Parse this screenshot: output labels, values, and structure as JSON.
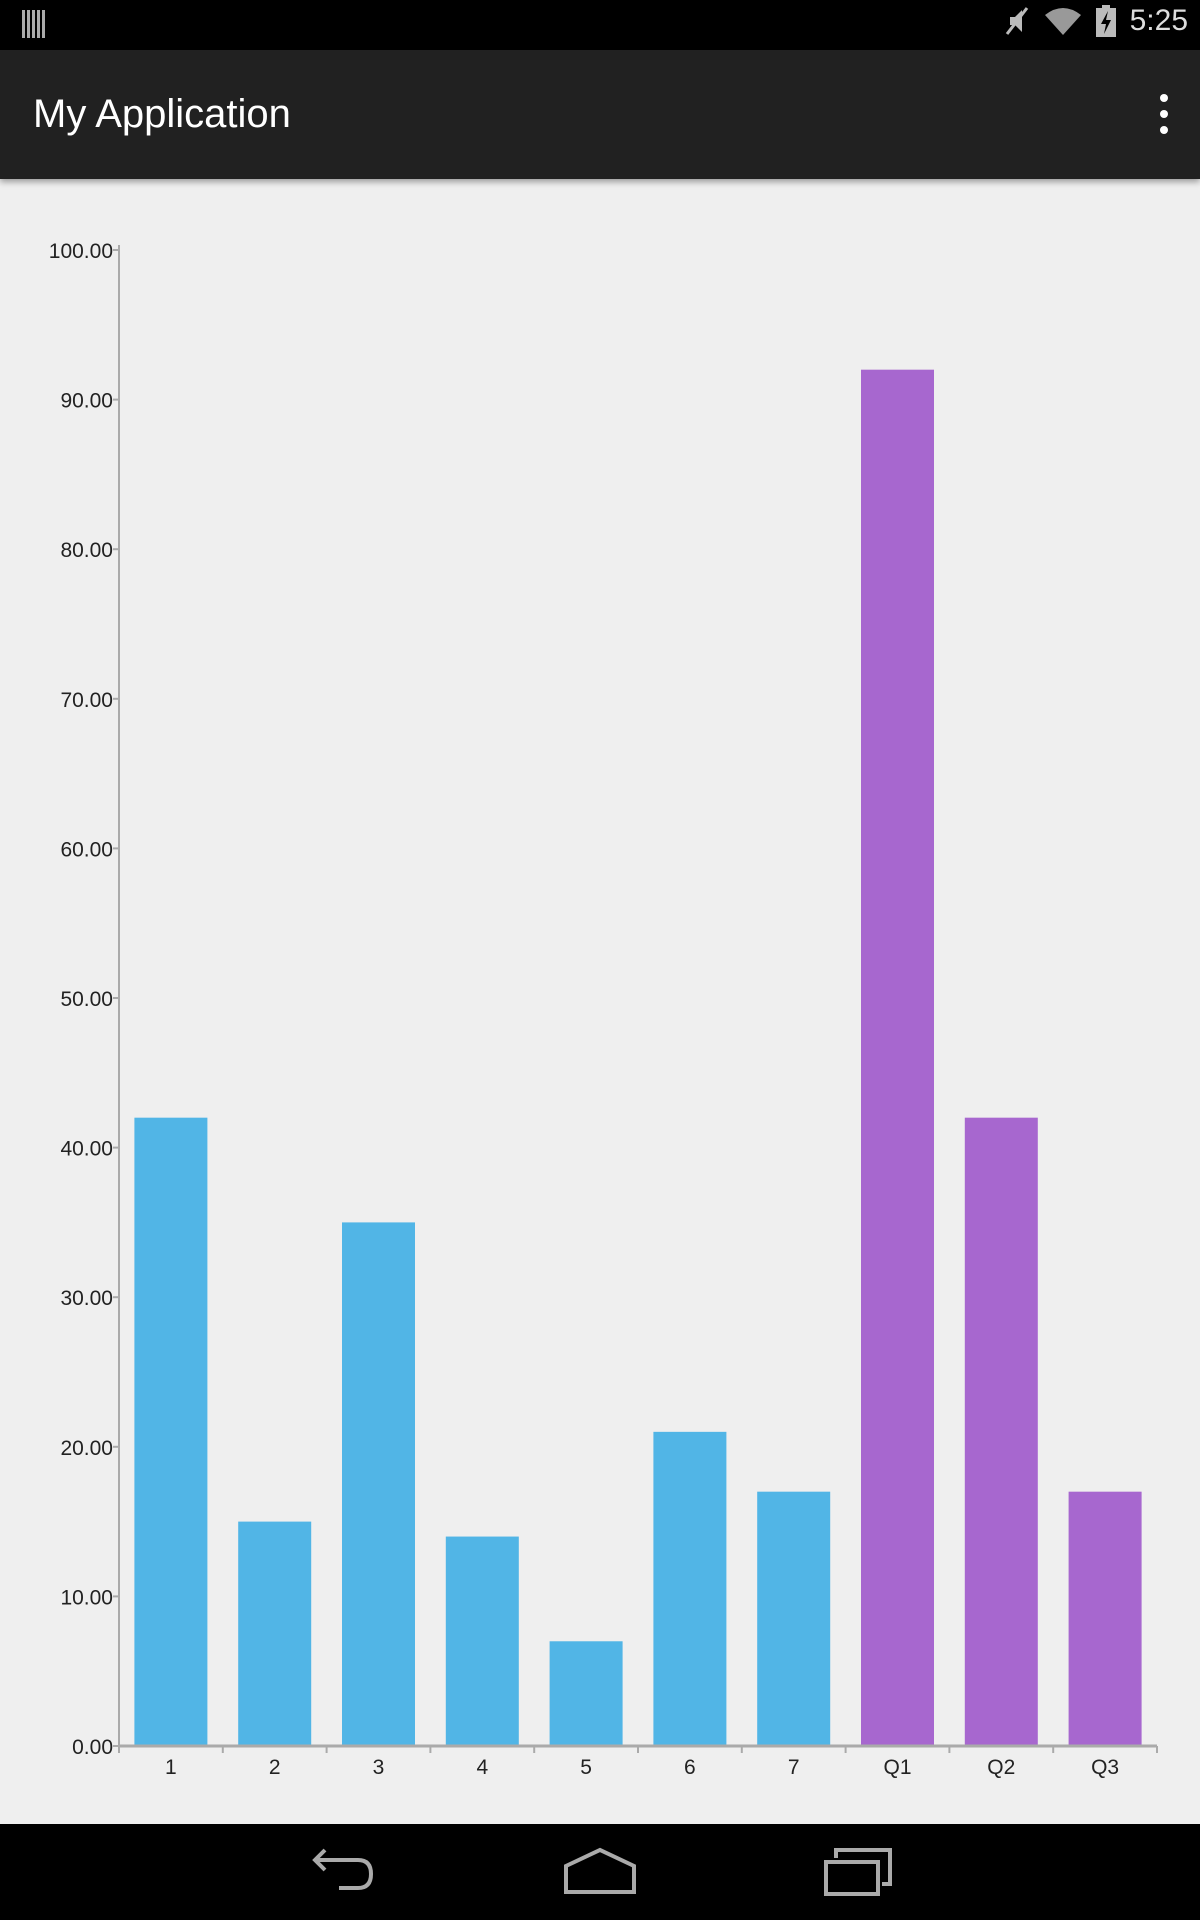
{
  "status_bar": {
    "time": "5:25",
    "icons": [
      "notification-icon",
      "mute-icon",
      "wifi-icon",
      "battery-charging-icon"
    ]
  },
  "app_bar": {
    "title": "My Application",
    "menu_icon": "overflow-menu-icon"
  },
  "nav_bar": {
    "icons": [
      "back-icon",
      "home-icon",
      "recent-apps-icon"
    ]
  },
  "colors": {
    "blue": "#51b5e6",
    "purple": "#a767cf",
    "axis": "#aaaaaa"
  },
  "chart_data": {
    "type": "bar",
    "title": "",
    "xlabel": "",
    "ylabel": "",
    "categories": [
      "1",
      "2",
      "3",
      "4",
      "5",
      "6",
      "7",
      "Q1",
      "Q2",
      "Q3"
    ],
    "values": [
      42,
      15,
      35,
      14,
      7,
      21,
      17,
      92,
      42,
      17
    ],
    "bar_colors": [
      "#51b5e6",
      "#51b5e6",
      "#51b5e6",
      "#51b5e6",
      "#51b5e6",
      "#51b5e6",
      "#51b5e6",
      "#a767cf",
      "#a767cf",
      "#a767cf"
    ],
    "ylim": [
      0,
      100
    ],
    "yticks": [
      "0.00",
      "10.00",
      "20.00",
      "30.00",
      "40.00",
      "50.00",
      "60.00",
      "70.00",
      "80.00",
      "90.00",
      "100.00"
    ],
    "grid": false,
    "legend": "none"
  }
}
